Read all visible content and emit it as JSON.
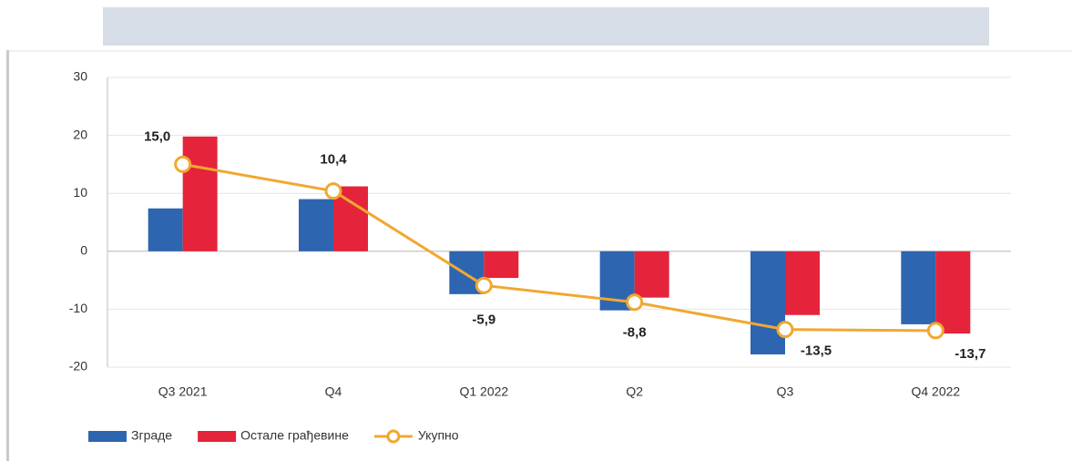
{
  "chart_data": {
    "type": "bar-line",
    "categories": [
      "Q3 2021",
      "Q4",
      "Q1 2022",
      "Q2",
      "Q3",
      "Q4 2022"
    ],
    "series": [
      {
        "name": "Зграде",
        "type": "bar",
        "color": "#2e65b0",
        "values": [
          7.4,
          9.0,
          -7.4,
          -10.2,
          -17.8,
          -12.6
        ]
      },
      {
        "name": "Остале грађевине",
        "type": "bar",
        "color": "#e5243b",
        "values": [
          19.8,
          11.2,
          -4.6,
          -8.0,
          -11.0,
          -14.2
        ]
      },
      {
        "name": "Укупно",
        "type": "line",
        "color": "#f0a830",
        "values": [
          15.0,
          10.4,
          -5.9,
          -8.8,
          -13.5,
          -13.7
        ],
        "value_labels": [
          "15,0",
          "10,4",
          "-5,9",
          "-8,8",
          "-13,5",
          "-13,7"
        ]
      }
    ],
    "ylim": [
      -20,
      30
    ],
    "yticks": [
      30,
      20,
      10,
      0,
      -10,
      -20
    ],
    "grid": true,
    "legend": "bottom-left"
  }
}
